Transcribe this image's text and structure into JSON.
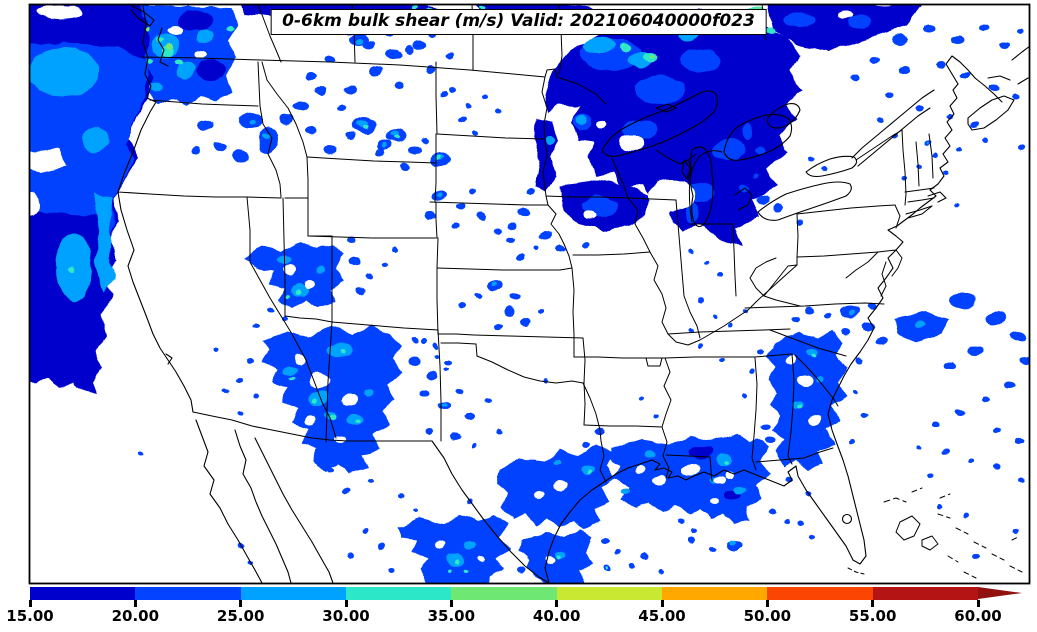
{
  "title": "0-6km bulk shear (m/s) Valid: 202106040000f023",
  "figure": {
    "background": "#ffffff",
    "frame_color": "#000000"
  },
  "colorbar": {
    "tick_labels": [
      "15.00",
      "20.00",
      "25.00",
      "30.00",
      "35.00",
      "40.00",
      "45.00",
      "50.00",
      "55.00",
      "60.00"
    ],
    "bands": [
      {
        "range": [
          15,
          20
        ],
        "color": "#0000cd"
      },
      {
        "range": [
          20,
          25
        ],
        "color": "#0443ff"
      },
      {
        "range": [
          25,
          30
        ],
        "color": "#00a2ff"
      },
      {
        "range": [
          30,
          35
        ],
        "color": "#2de8c8"
      },
      {
        "range": [
          35,
          40
        ],
        "color": "#6fe873"
      },
      {
        "range": [
          40,
          45
        ],
        "color": "#c8e832"
      },
      {
        "range": [
          45,
          50
        ],
        "color": "#ffa800"
      },
      {
        "range": [
          50,
          55
        ],
        "color": "#fb4502"
      },
      {
        "range": [
          55,
          60
        ],
        "color": "#b51414"
      }
    ],
    "overflow_color": "#911010"
  },
  "chart_data": {
    "type": "heatmap",
    "title": "0-6km bulk shear (m/s) Valid: 202106040000f023",
    "variable": "0-6km bulk shear",
    "units": "m/s",
    "valid": "202106040000f023",
    "colorbar_ticks": [
      15,
      20,
      25,
      30,
      35,
      40,
      45,
      50,
      55,
      60
    ],
    "colorbar_colors": [
      "#0000cd",
      "#0443ff",
      "#00a2ff",
      "#2de8c8",
      "#6fe873",
      "#c8e832",
      "#ffa800",
      "#fb4502",
      "#b51414"
    ],
    "extend": "max",
    "legend_position": "bottom"
  }
}
